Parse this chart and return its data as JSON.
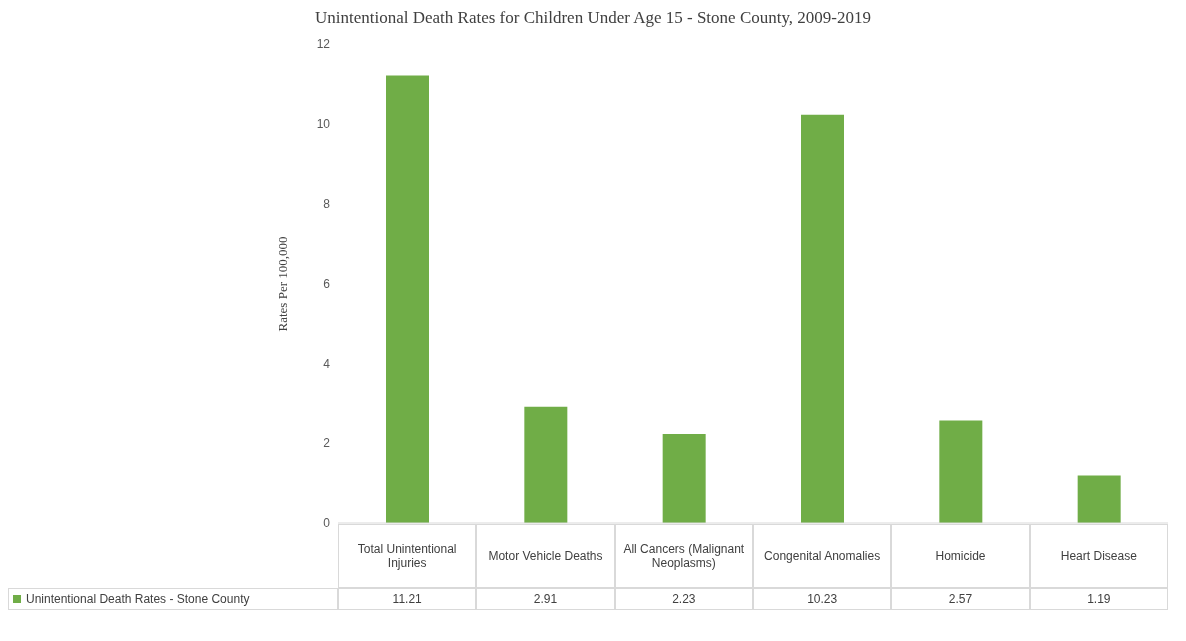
{
  "chart_data": {
    "type": "bar",
    "title": "Unintentional Death Rates for Children Under Age 15 - Stone County, 2009-2019",
    "ylabel": "Rates Per 100,000",
    "categories": [
      "Total Unintentional Injuries",
      "Motor Vehicle Deaths",
      "All Cancers (Malignant Neoplasms)",
      "Congenital Anomalies",
      "Homicide",
      "Heart Disease"
    ],
    "series": [
      {
        "name": "Unintentional Death Rates - Stone County",
        "color": "#70ad47",
        "values": [
          11.21,
          2.91,
          2.23,
          10.23,
          2.57,
          1.19
        ]
      }
    ],
    "ylim": [
      0,
      12
    ],
    "yticks": [
      0,
      2,
      4,
      6,
      8,
      10,
      12
    ],
    "grid": false,
    "legend": "bottom",
    "data_labels": true
  }
}
